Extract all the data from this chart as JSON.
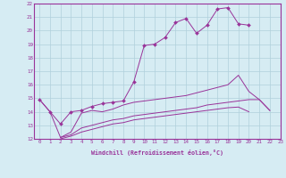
{
  "xlabel": "Windchill (Refroidissement éolien,°C)",
  "background_color": "#d6ecf3",
  "grid_color": "#b0d0db",
  "line_color": "#993399",
  "xlim": [
    -0.5,
    23
  ],
  "ylim": [
    12,
    22
  ],
  "yticks": [
    12,
    13,
    14,
    15,
    16,
    17,
    18,
    19,
    20,
    21,
    22
  ],
  "xticks": [
    0,
    1,
    2,
    3,
    4,
    5,
    6,
    7,
    8,
    9,
    10,
    11,
    12,
    13,
    14,
    15,
    16,
    17,
    18,
    19,
    20,
    21,
    22,
    23
  ],
  "series": [
    {
      "x": [
        0,
        1,
        2,
        3,
        4,
        5,
        6,
        7,
        8,
        9,
        10,
        11,
        12,
        13,
        14,
        15,
        16,
        17,
        18,
        19,
        20
      ],
      "y": [
        14.9,
        14.0,
        13.1,
        14.0,
        14.1,
        14.4,
        14.6,
        14.7,
        14.8,
        16.2,
        18.9,
        19.0,
        19.5,
        20.6,
        20.9,
        19.8,
        20.4,
        21.6,
        21.7,
        20.5,
        20.4
      ],
      "marker": true
    },
    {
      "x": [
        0,
        1,
        2,
        3,
        4,
        5,
        6,
        7,
        8,
        9,
        10,
        11,
        12,
        13,
        14,
        15,
        16,
        17,
        18,
        19,
        20,
        21,
        22
      ],
      "y": [
        14.9,
        14.0,
        12.1,
        12.5,
        13.9,
        14.1,
        14.0,
        14.2,
        14.5,
        14.7,
        14.8,
        14.9,
        15.0,
        15.1,
        15.2,
        15.4,
        15.6,
        15.8,
        16.0,
        16.7,
        15.5,
        14.9,
        14.1
      ],
      "marker": false
    },
    {
      "x": [
        2,
        3,
        4,
        5,
        6,
        7,
        8,
        9,
        10,
        11,
        12,
        13,
        14,
        15,
        16,
        17,
        18,
        19,
        20,
        21,
        22
      ],
      "y": [
        12.1,
        12.3,
        12.8,
        13.0,
        13.2,
        13.4,
        13.5,
        13.7,
        13.8,
        13.9,
        14.0,
        14.1,
        14.2,
        14.3,
        14.5,
        14.6,
        14.7,
        14.8,
        14.9,
        14.9,
        14.1
      ],
      "marker": false
    },
    {
      "x": [
        2,
        3,
        4,
        5,
        6,
        7,
        8,
        9,
        10,
        11,
        12,
        13,
        14,
        15,
        16,
        17,
        18,
        19,
        20
      ],
      "y": [
        12.0,
        12.2,
        12.5,
        12.7,
        12.9,
        13.1,
        13.2,
        13.4,
        13.5,
        13.6,
        13.7,
        13.8,
        13.9,
        14.0,
        14.1,
        14.2,
        14.3,
        14.35,
        14.0
      ],
      "marker": false
    }
  ]
}
